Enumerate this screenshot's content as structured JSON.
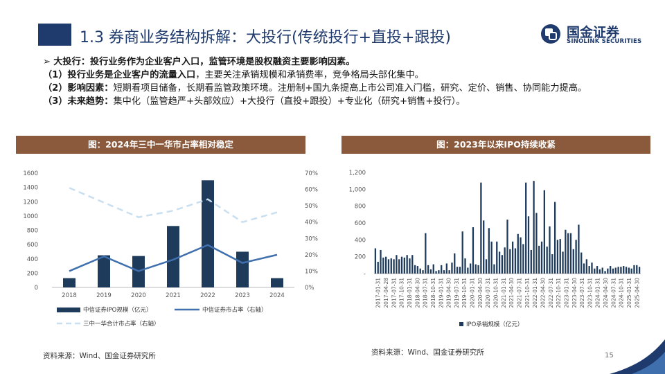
{
  "title": "1.3 券商业务结构拆解：大投行(传统投行+直投+跟投)",
  "logo": {
    "cn": "国金证券",
    "en": "SINOLINK SECURITIES"
  },
  "bullets": [
    {
      "prefix": "➢ ",
      "bold": "大投行：投行业务作为企业客户入口，监管环境是股权融资主要影响因素。",
      "rest": ""
    },
    {
      "prefix": "",
      "bold": "（1）投行业务是企业客户的流量入口",
      "rest": "，主要关注承销规模和承销费率，竞争格局头部化集中。"
    },
    {
      "prefix": "",
      "bold": "（2）影响因素：",
      "rest": "短期看项目储备，长期看监管政策环境。注册制+国九条提高上市公司准入门槛，研究、定价、销售、协同能力提高。"
    },
    {
      "prefix": "",
      "bold": "（3）未来趋势：",
      "rest": "集中化（监管趋严+头部效应）+大投行（直投+跟投）+专业化（研究+销售+投行）。"
    }
  ],
  "left_panel_title": "图：2024年三中一华市占率相对稳定",
  "right_panel_title": "图：2023年以来IPO持续收紧",
  "source_left": "资料来源：Wind、国金证券研究所",
  "source_right": "资料来源：Wind、国金证券研究所",
  "page_number": "15",
  "colors": {
    "navy": "#1f3b6e",
    "brown": "#8b5a3c",
    "bar": "#1f3b5c",
    "line": "#3f6fad",
    "dash": "#c9dff0"
  },
  "chart_data": [
    {
      "type": "bar",
      "categories": [
        "2018",
        "2019",
        "2020",
        "2021",
        "2022",
        "2023",
        "2024"
      ],
      "y_ticks": [
        "0",
        "200",
        "400",
        "600",
        "800",
        "1000",
        "1200",
        "1400",
        "1600"
      ],
      "y2_ticks": [
        "0%",
        "10%",
        "20%",
        "30%",
        "40%",
        "50%",
        "60%",
        "70%"
      ],
      "ylim": [
        0,
        1600
      ],
      "y2lim": [
        0,
        0.7
      ],
      "series": [
        {
          "name": "中信证券IPO规模（亿元）",
          "kind": "bar",
          "axis": "left",
          "values": [
            130,
            450,
            440,
            860,
            1500,
            500,
            130
          ]
        },
        {
          "name": "中信证券市占率（右轴）",
          "kind": "line",
          "axis": "right",
          "values": [
            0.1,
            0.19,
            0.1,
            0.17,
            0.26,
            0.15,
            0.2
          ]
        },
        {
          "name": "三中一华合计市占率（右轴）",
          "kind": "dashed-line",
          "axis": "right",
          "values": [
            0.61,
            0.52,
            0.43,
            0.47,
            0.54,
            0.4,
            0.46
          ]
        }
      ],
      "legend": "bottom"
    },
    {
      "type": "bar",
      "y_ticks": [
        "-",
        "200",
        "400",
        "600",
        "800",
        "1,000",
        "1,200"
      ],
      "ylim": [
        0,
        1200
      ],
      "x_tick_labels": [
        "2017-01-31",
        "2017-04-28",
        "2017-07-31",
        "2017-10-31",
        "2018-01-31",
        "2018-04-30",
        "2018-07-31",
        "2018-10-31",
        "2019-01-31",
        "2019-04-30",
        "2019-07-31",
        "2019-10-31",
        "2020-01-31",
        "2020-04-30",
        "2020-07-31",
        "2020-10-31",
        "2021-01-31",
        "2021-04-30",
        "2021-07-31",
        "2021-10-31",
        "2022-01-31",
        "2022-04-30",
        "2022-07-31",
        "2022-10-31",
        "2023-01-31",
        "2023-04-30",
        "2023-07-31",
        "2023-10-31",
        "2024-01-31",
        "2024-04-30",
        "2024-07-31",
        "2024-10-31",
        "2025-01-31",
        "2025-04-30"
      ],
      "series": [
        {
          "name": "IPO承销规模（亿元）",
          "values": [
            300,
            140,
            280,
            190,
            200,
            170,
            180,
            170,
            220,
            170,
            200,
            190,
            220,
            180,
            220,
            100,
            90,
            60,
            40,
            480,
            100,
            50,
            110,
            30,
            40,
            100,
            40,
            120,
            40,
            130,
            240,
            80,
            80,
            500,
            180,
            70,
            120,
            550,
            110,
            100,
            1080,
            630,
            170,
            540,
            380,
            110,
            380,
            260,
            220,
            310,
            640,
            290,
            380,
            300,
            470,
            430,
            350,
            1080,
            680,
            280,
            1100,
            720,
            330,
            380,
            990,
            320,
            560,
            230,
            850,
            400,
            410,
            260,
            520,
            480,
            480,
            290,
            400,
            580,
            250,
            120,
            170,
            90,
            130,
            60,
            90,
            50,
            70,
            30,
            60,
            90,
            60,
            70,
            80,
            80,
            90,
            80,
            70,
            60,
            100,
            100,
            80
          ]
        }
      ],
      "legend": "bottom"
    }
  ]
}
